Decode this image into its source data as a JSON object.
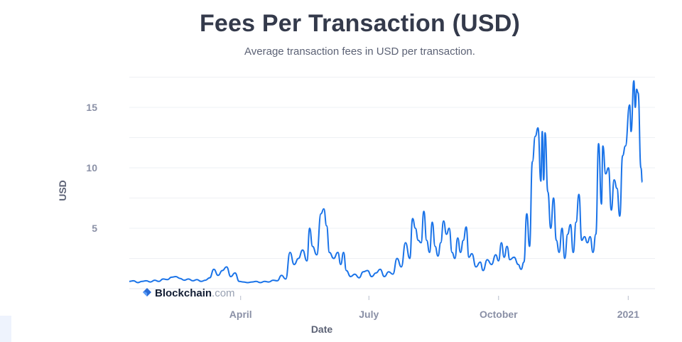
{
  "header": {
    "title": "Fees Per Transaction (USD)",
    "subtitle": "Average transaction fees in USD per transaction."
  },
  "watermark": {
    "brand": "Blockchain",
    "suffix": ".com",
    "icon": "blockchain-logo-icon"
  },
  "colors": {
    "line": "#1a73e8",
    "grid": "#eef0f4",
    "axis_text": "#8a90a6"
  },
  "chart_data": {
    "type": "line",
    "title": "Fees Per Transaction (USD)",
    "subtitle": "Average transaction fees in USD per transaction.",
    "xlabel": "Date",
    "ylabel": "USD",
    "xlim": [
      "2020-01-13",
      "2021-01-20"
    ],
    "ylim": [
      0,
      18
    ],
    "x_ticks": [
      {
        "date": "2020-04-01",
        "label": "April"
      },
      {
        "date": "2020-07-01",
        "label": "July"
      },
      {
        "date": "2020-10-01",
        "label": "October"
      },
      {
        "date": "2021-01-01",
        "label": "2021"
      }
    ],
    "y_ticks": [
      5,
      10,
      15
    ],
    "grid": true,
    "series": [
      {
        "values": [
          [
            "2020-01-13",
            0.6
          ],
          [
            "2020-01-16",
            0.65
          ],
          [
            "2020-01-19",
            0.5
          ],
          [
            "2020-01-22",
            0.6
          ],
          [
            "2020-01-25",
            0.65
          ],
          [
            "2020-01-28",
            0.55
          ],
          [
            "2020-01-31",
            0.7
          ],
          [
            "2020-02-03",
            0.6
          ],
          [
            "2020-02-06",
            0.8
          ],
          [
            "2020-02-09",
            0.75
          ],
          [
            "2020-02-12",
            0.95
          ],
          [
            "2020-02-15",
            1.0
          ],
          [
            "2020-02-18",
            0.85
          ],
          [
            "2020-02-21",
            0.7
          ],
          [
            "2020-02-24",
            0.8
          ],
          [
            "2020-02-27",
            0.65
          ],
          [
            "2020-03-01",
            0.75
          ],
          [
            "2020-03-04",
            0.6
          ],
          [
            "2020-03-07",
            0.7
          ],
          [
            "2020-03-10",
            0.9
          ],
          [
            "2020-03-13",
            1.6
          ],
          [
            "2020-03-16",
            1.1
          ],
          [
            "2020-03-19",
            1.5
          ],
          [
            "2020-03-22",
            1.8
          ],
          [
            "2020-03-25",
            1.0
          ],
          [
            "2020-03-28",
            1.3
          ],
          [
            "2020-03-31",
            0.6
          ],
          [
            "2020-04-03",
            0.55
          ],
          [
            "2020-04-06",
            0.5
          ],
          [
            "2020-04-09",
            0.55
          ],
          [
            "2020-04-12",
            0.6
          ],
          [
            "2020-04-15",
            0.5
          ],
          [
            "2020-04-18",
            0.6
          ],
          [
            "2020-04-21",
            0.55
          ],
          [
            "2020-04-24",
            0.7
          ],
          [
            "2020-04-27",
            0.65
          ],
          [
            "2020-04-30",
            1.1
          ],
          [
            "2020-05-03",
            0.8
          ],
          [
            "2020-05-06",
            3.0
          ],
          [
            "2020-05-09",
            2.0
          ],
          [
            "2020-05-12",
            2.5
          ],
          [
            "2020-05-15",
            3.2
          ],
          [
            "2020-05-18",
            2.3
          ],
          [
            "2020-05-20",
            5.0
          ],
          [
            "2020-05-22",
            3.5
          ],
          [
            "2020-05-25",
            2.8
          ],
          [
            "2020-05-28",
            6.2
          ],
          [
            "2020-05-30",
            6.6
          ],
          [
            "2020-06-01",
            5.2
          ],
          [
            "2020-06-03",
            3.0
          ],
          [
            "2020-06-06",
            2.5
          ],
          [
            "2020-06-09",
            3.0
          ],
          [
            "2020-06-11",
            2.0
          ],
          [
            "2020-06-13",
            3.0
          ],
          [
            "2020-06-15",
            1.5
          ],
          [
            "2020-06-18",
            1.0
          ],
          [
            "2020-06-21",
            1.2
          ],
          [
            "2020-06-24",
            0.9
          ],
          [
            "2020-06-27",
            1.4
          ],
          [
            "2020-06-30",
            1.5
          ],
          [
            "2020-07-03",
            1.0
          ],
          [
            "2020-07-06",
            1.3
          ],
          [
            "2020-07-09",
            1.6
          ],
          [
            "2020-07-12",
            1.0
          ],
          [
            "2020-07-15",
            1.4
          ],
          [
            "2020-07-18",
            1.2
          ],
          [
            "2020-07-21",
            2.5
          ],
          [
            "2020-07-24",
            1.8
          ],
          [
            "2020-07-27",
            3.8
          ],
          [
            "2020-07-30",
            2.5
          ],
          [
            "2020-08-01",
            5.8
          ],
          [
            "2020-08-03",
            5.0
          ],
          [
            "2020-08-05",
            4.0
          ],
          [
            "2020-08-07",
            3.8
          ],
          [
            "2020-08-09",
            6.4
          ],
          [
            "2020-08-11",
            4.0
          ],
          [
            "2020-08-13",
            3.0
          ],
          [
            "2020-08-15",
            5.5
          ],
          [
            "2020-08-17",
            3.5
          ],
          [
            "2020-08-19",
            2.7
          ],
          [
            "2020-08-21",
            3.8
          ],
          [
            "2020-08-23",
            5.6
          ],
          [
            "2020-08-25",
            4.5
          ],
          [
            "2020-08-27",
            5.0
          ],
          [
            "2020-08-29",
            3.0
          ],
          [
            "2020-08-31",
            2.5
          ],
          [
            "2020-09-02",
            4.2
          ],
          [
            "2020-09-04",
            3.0
          ],
          [
            "2020-09-06",
            4.0
          ],
          [
            "2020-09-08",
            5.1
          ],
          [
            "2020-09-10",
            2.6
          ],
          [
            "2020-09-12",
            2.9
          ],
          [
            "2020-09-15",
            1.8
          ],
          [
            "2020-09-18",
            2.2
          ],
          [
            "2020-09-20",
            1.5
          ],
          [
            "2020-09-23",
            2.4
          ],
          [
            "2020-09-26",
            2.0
          ],
          [
            "2020-09-29",
            2.8
          ],
          [
            "2020-10-01",
            2.3
          ],
          [
            "2020-10-03",
            3.8
          ],
          [
            "2020-10-05",
            2.6
          ],
          [
            "2020-10-07",
            3.5
          ],
          [
            "2020-10-09",
            2.4
          ],
          [
            "2020-10-12",
            2.6
          ],
          [
            "2020-10-15",
            2.0
          ],
          [
            "2020-10-17",
            1.6
          ],
          [
            "2020-10-19",
            2.2
          ],
          [
            "2020-10-21",
            6.2
          ],
          [
            "2020-10-23",
            3.5
          ],
          [
            "2020-10-25",
            10.5
          ],
          [
            "2020-10-27",
            12.6
          ],
          [
            "2020-10-29",
            13.3
          ],
          [
            "2020-10-31",
            8.9
          ],
          [
            "2020-11-01",
            13.0
          ],
          [
            "2020-11-02",
            9.0
          ],
          [
            "2020-11-03",
            12.9
          ],
          [
            "2020-11-05",
            8.0
          ],
          [
            "2020-11-07",
            5.0
          ],
          [
            "2020-11-09",
            7.5
          ],
          [
            "2020-11-11",
            4.0
          ],
          [
            "2020-11-13",
            3.0
          ],
          [
            "2020-11-15",
            5.0
          ],
          [
            "2020-11-17",
            2.5
          ],
          [
            "2020-11-19",
            4.5
          ],
          [
            "2020-11-21",
            5.3
          ],
          [
            "2020-11-23",
            3.0
          ],
          [
            "2020-11-25",
            5.5
          ],
          [
            "2020-11-27",
            7.8
          ],
          [
            "2020-11-29",
            4.0
          ],
          [
            "2020-12-01",
            4.3
          ],
          [
            "2020-12-03",
            3.8
          ],
          [
            "2020-12-05",
            4.3
          ],
          [
            "2020-12-07",
            3.0
          ],
          [
            "2020-12-09",
            4.5
          ],
          [
            "2020-12-11",
            12.0
          ],
          [
            "2020-12-13",
            7.0
          ],
          [
            "2020-12-14",
            11.8
          ],
          [
            "2020-12-16",
            9.5
          ],
          [
            "2020-12-18",
            10.0
          ],
          [
            "2020-12-20",
            6.5
          ],
          [
            "2020-12-22",
            9.0
          ],
          [
            "2020-12-24",
            8.3
          ],
          [
            "2020-12-26",
            6.0
          ],
          [
            "2020-12-28",
            11.0
          ],
          [
            "2020-12-30",
            11.8
          ],
          [
            "2021-01-02",
            15.2
          ],
          [
            "2021-01-03",
            13.0
          ],
          [
            "2021-01-05",
            17.2
          ],
          [
            "2021-01-06",
            15.0
          ],
          [
            "2021-01-07",
            16.5
          ],
          [
            "2021-01-08",
            16.2
          ],
          [
            "2021-01-10",
            10.0
          ],
          [
            "2021-01-11",
            8.8
          ]
        ]
      }
    ]
  }
}
